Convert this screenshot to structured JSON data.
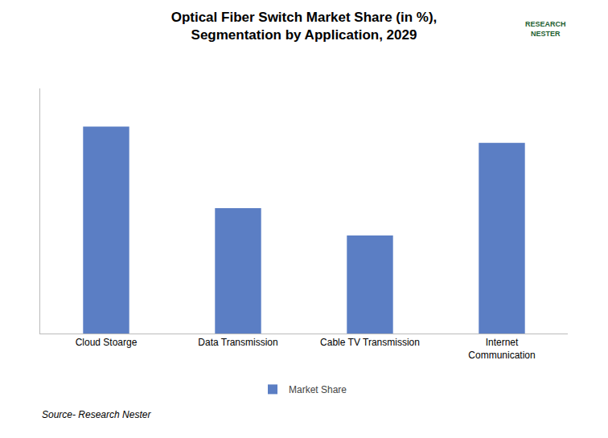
{
  "chart_data": {
    "type": "bar",
    "title": "Optical Fiber Switch Market Share (in %),",
    "subtitle": "Segmentation by Application, 2029",
    "categories": [
      "Cloud Stoarge",
      "Data Transmission",
      "Cable TV Transmission",
      "Internet\nCommunication"
    ],
    "series": [
      {
        "name": "Market Share",
        "color": "#5b7ec4",
        "values": [
          38,
          23,
          18,
          35
        ]
      }
    ],
    "ylim": [
      0,
      45
    ],
    "grid": false,
    "tick_labels": "x",
    "legend": "bottom",
    "annotations": [
      "Source- Research Nester",
      "RESEARCH",
      "NESTER"
    ]
  }
}
